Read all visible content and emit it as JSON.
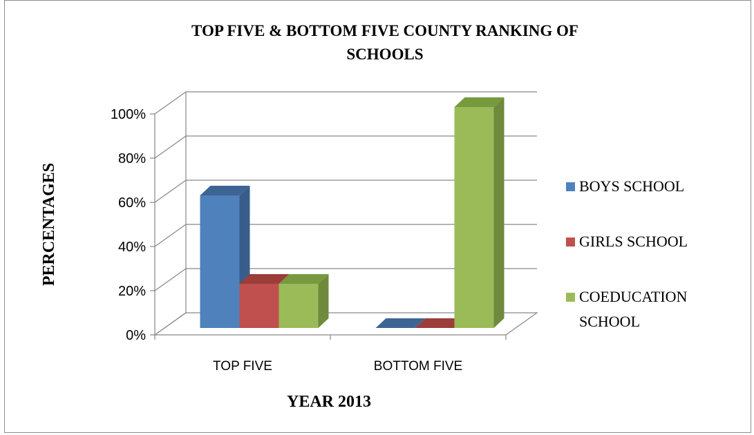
{
  "chart_data": {
    "type": "bar",
    "title_lines": [
      "TOP FIVE & BOTTOM FIVE COUNTY RANKING OF",
      "SCHOOLS"
    ],
    "xlabel": "YEAR 2013",
    "ylabel": "PERCENTAGES",
    "categories": [
      "TOP FIVE",
      "BOTTOM FIVE"
    ],
    "ylim": [
      0,
      100
    ],
    "yticks": [
      "0%",
      "20%",
      "40%",
      "60%",
      "80%",
      "100%"
    ],
    "grid": true,
    "three_d": true,
    "legend_position": "right",
    "series": [
      {
        "name": "BOYS SCHOOL",
        "values": [
          60,
          0
        ],
        "color": "#4f81bd",
        "side": "#385d8a",
        "top": "#3d6594"
      },
      {
        "name": "GIRLS SCHOOL",
        "values": [
          20,
          0
        ],
        "color": "#c0504d",
        "side": "#8c3836",
        "top": "#9b3d3a"
      },
      {
        "name": "COEDUCATION SCHOOL",
        "legend_lines": [
          "COEDUCATION",
          "SCHOOL"
        ],
        "values": [
          20,
          100
        ],
        "color": "#9bbb59",
        "side": "#6f8a3c",
        "top": "#779a3e"
      }
    ]
  }
}
